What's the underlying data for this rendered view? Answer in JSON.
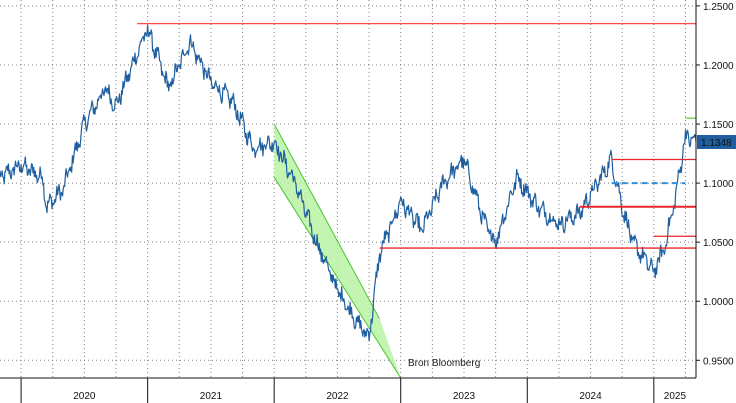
{
  "chart_data": {
    "type": "line",
    "title": "",
    "xlabel": "",
    "ylabel": "",
    "source_note": "Bron Bloomberg",
    "x_ticks": [
      "2020",
      "2021",
      "2022",
      "2023",
      "2024",
      "2025"
    ],
    "y_ticks": [
      "1.2500",
      "1.2000",
      "1.1500",
      "1.1000",
      "1.0500",
      "1.0000",
      "0.9500"
    ],
    "ylim": [
      0.935,
      1.255
    ],
    "xlim": [
      "2019-11",
      "2025-05"
    ],
    "grid": true,
    "legend": "none",
    "last_value_label": "1.1348",
    "series": [
      {
        "points": [
          [
            "2019-11",
            1.105
          ],
          [
            "2020-01",
            1.115
          ],
          [
            "2020-03",
            1.105
          ],
          [
            "2020-03-15",
            1.08
          ],
          [
            "2020-05",
            1.095
          ],
          [
            "2020-07",
            1.15
          ],
          [
            "2020-09",
            1.18
          ],
          [
            "2020-10",
            1.165
          ],
          [
            "2020-12",
            1.21
          ],
          [
            "2021-01",
            1.23
          ],
          [
            "2021-03",
            1.18
          ],
          [
            "2021-05",
            1.22
          ],
          [
            "2021-07",
            1.185
          ],
          [
            "2021-09",
            1.17
          ],
          [
            "2021-11",
            1.13
          ],
          [
            "2022-01",
            1.135
          ],
          [
            "2022-03",
            1.1
          ],
          [
            "2022-05",
            1.05
          ],
          [
            "2022-07",
            1.01
          ],
          [
            "2022-09",
            0.98
          ],
          [
            "2022-10",
            0.97
          ],
          [
            "2022-11",
            1.04
          ],
          [
            "2023-01",
            1.085
          ],
          [
            "2023-03",
            1.06
          ],
          [
            "2023-05",
            1.1
          ],
          [
            "2023-07",
            1.12
          ],
          [
            "2023-09",
            1.065
          ],
          [
            "2023-10",
            1.05
          ],
          [
            "2023-12",
            1.105
          ],
          [
            "2024-02",
            1.08
          ],
          [
            "2024-04",
            1.065
          ],
          [
            "2024-06",
            1.075
          ],
          [
            "2024-08",
            1.105
          ],
          [
            "2024-09",
            1.12
          ],
          [
            "2024-10",
            1.08
          ],
          [
            "2024-11",
            1.05
          ],
          [
            "2025-01",
            1.025
          ],
          [
            "2025-02",
            1.045
          ],
          [
            "2025-03",
            1.085
          ],
          [
            "2025-04",
            1.14
          ],
          [
            "2025-05",
            1.1348
          ]
        ],
        "color": "#1f5fa0"
      }
    ],
    "annotations": [
      {
        "kind": "hline",
        "y": 1.235,
        "x_from": "2020-12",
        "x_to": "2025-05",
        "color": "#ff4a4a"
      },
      {
        "kind": "hline",
        "y": 1.155,
        "x_from": "2025-04",
        "x_to": "2025-05",
        "color": "#65d045"
      },
      {
        "kind": "hline",
        "y": 1.12,
        "x_from": "2024-09",
        "x_to": "2025-05",
        "color": "#e8262a"
      },
      {
        "kind": "dashed_hline",
        "y": 1.1,
        "x_from": "2024-09",
        "x_to": "2025-04",
        "color": "#2e8fe0"
      },
      {
        "kind": "hline",
        "y": 1.08,
        "x_from": "2024-06",
        "x_to": "2025-05",
        "color": "#e8262a"
      },
      {
        "kind": "hline",
        "y": 1.055,
        "x_from": "2025-01",
        "x_to": "2025-05",
        "color": "#e8262a"
      },
      {
        "kind": "hline",
        "y": 1.045,
        "x_from": "2022-11",
        "x_to": "2025-05",
        "color": "#e8262a"
      },
      {
        "kind": "channel",
        "upper": [
          [
            "2022-01",
            1.15
          ],
          [
            "2022-11",
            0.985
          ]
        ],
        "lower": [
          [
            "2022-01",
            1.105
          ],
          [
            "2023-01",
            0.935
          ]
        ],
        "fill": "#b8f2a4",
        "edge": "#4bc431"
      }
    ],
    "colors": {
      "price_line": "#1f5fa0",
      "resistance": "#e8262a",
      "support_green": "#65d045",
      "dashed_level": "#2e8fe0",
      "channel_fill": "#b8f2a4",
      "last_value_bg": "#1f5fa0",
      "grid": "#7f7f7f"
    }
  }
}
